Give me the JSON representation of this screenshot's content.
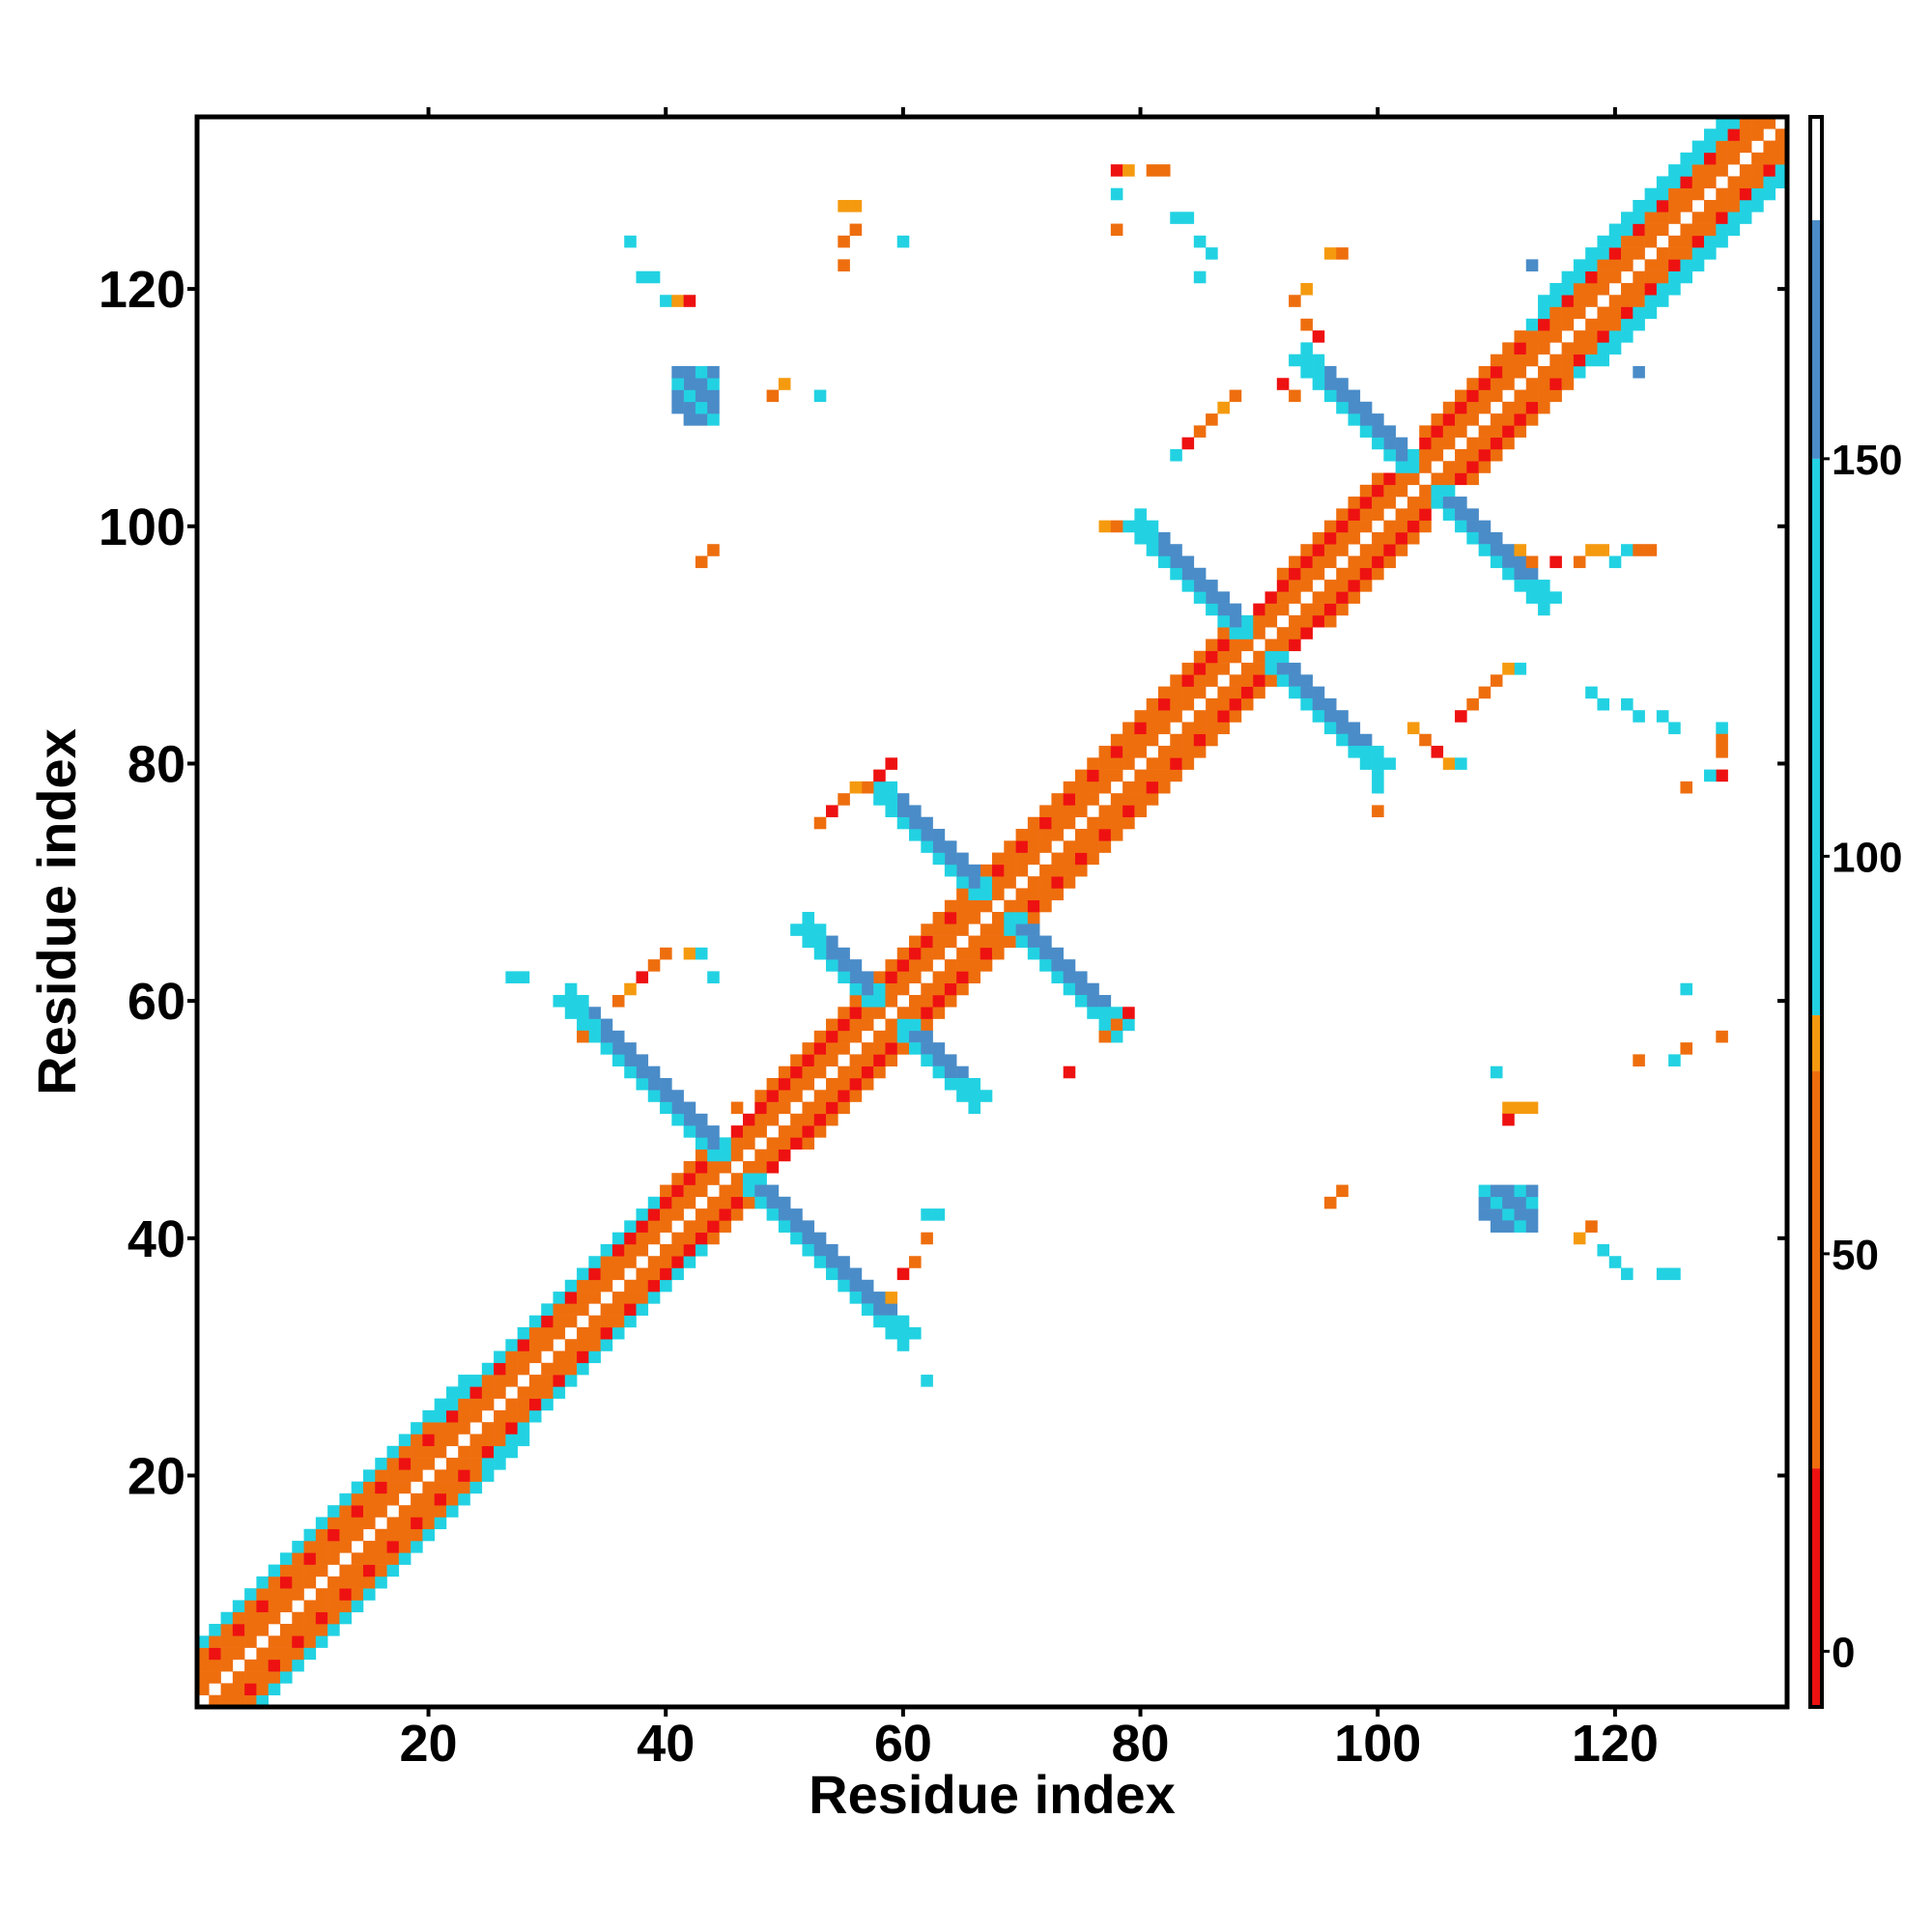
{
  "chart_data": {
    "type": "heatmap",
    "title": "",
    "xlabel": "Residue index",
    "ylabel": "Residue index",
    "xlim": [
      1,
      134
    ],
    "ylim": [
      1,
      134
    ],
    "x_ticks": [
      20,
      40,
      60,
      80,
      100,
      120
    ],
    "y_ticks": [
      20,
      40,
      60,
      80,
      100,
      120
    ],
    "grid": false,
    "colorbar": {
      "ticks": [
        0,
        50,
        100,
        150
      ],
      "range": [
        -7,
        193
      ],
      "bands": [
        {
          "from": -7,
          "to": 23,
          "color": "#ee1111"
        },
        {
          "from": 23,
          "to": 73,
          "color": "#ee6e0e"
        },
        {
          "from": 73,
          "to": 80,
          "color": "#f59a0f"
        },
        {
          "from": 80,
          "to": 150,
          "color": "#22d2e2"
        },
        {
          "from": 150,
          "to": 180,
          "color": "#4a8cc8"
        },
        {
          "from": 180,
          "to": 193,
          "color": "#ffffff"
        }
      ]
    },
    "colors": {
      "red": "#ee1111",
      "orange": "#ee6e0e",
      "amber": "#f59a0f",
      "cyan": "#22d2e2",
      "blue": "#4a8cc8"
    },
    "features": [
      {
        "kind": "diagonal",
        "from": 1,
        "to": 134,
        "description": "helical near-diagonal contacts (i±2 orange, i±3 red/orange, i±4 cyan)"
      },
      {
        "kind": "antiparallel",
        "center": [
          46,
          46
        ],
        "length": 14,
        "value": "blue"
      },
      {
        "kind": "antiparallel",
        "center": [
          59,
          59
        ],
        "length": 7,
        "value": "blue"
      },
      {
        "kind": "antiparallel",
        "center": [
          68,
          68
        ],
        "length": 10,
        "value": "blue"
      },
      {
        "kind": "antiparallel",
        "center": [
          90,
          90
        ],
        "length": 10,
        "value": "blue"
      },
      {
        "kind": "antiparallel",
        "center": [
          104,
          104
        ],
        "length": 10,
        "value": "blue"
      },
      {
        "kind": "cluster",
        "x": [
          42,
          44
        ],
        "y": [
          109,
          113
        ],
        "value": "blue"
      },
      {
        "kind": "cluster",
        "x": [
          110,
          113
        ],
        "y": [
          41,
          44
        ],
        "value": "blue"
      }
    ]
  }
}
